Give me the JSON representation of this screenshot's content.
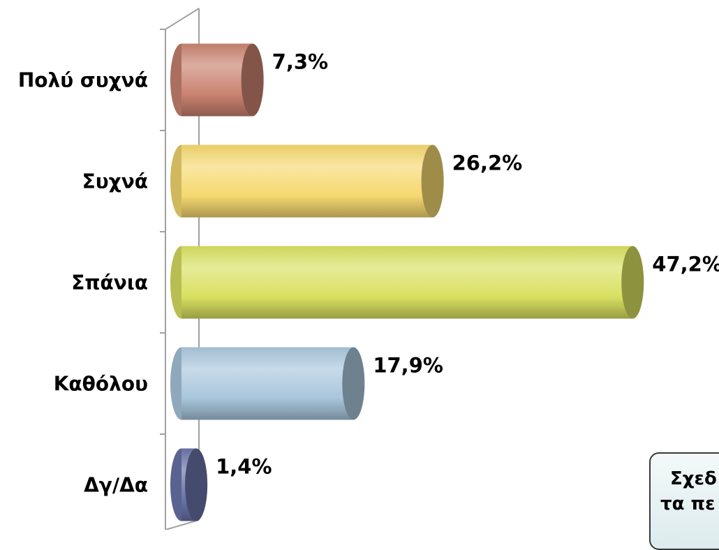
{
  "chart_data": {
    "type": "bar",
    "orientation": "horizontal",
    "style": "3d-cylinder",
    "categories": [
      "Πολύ συχνά",
      "Συχνά",
      "Σπάνια",
      "Καθόλου",
      "Δγ/Δα"
    ],
    "values": [
      7.3,
      26.2,
      47.2,
      17.9,
      1.4
    ],
    "value_labels": [
      "7,3%",
      "26,2%",
      "47,2%",
      "17,9%",
      "1,4%"
    ],
    "colors": [
      "#c98270",
      "#f5d870",
      "#d9e060",
      "#a9c6dc",
      "#6a74a8"
    ],
    "xlim": [
      0,
      50
    ],
    "grid": false,
    "legend": "none"
  },
  "callout": {
    "line1": "Σχεδ",
    "line2": "τα πε"
  }
}
